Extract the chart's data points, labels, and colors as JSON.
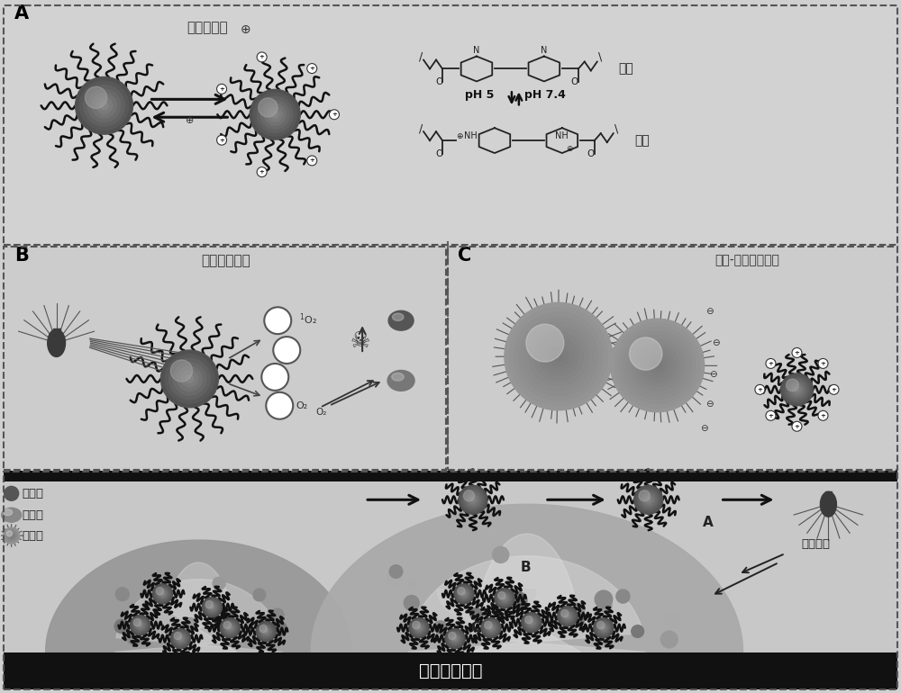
{
  "bg_color": "#d0d0d0",
  "panel_A_bg": "#d2d2d2",
  "panel_BC_bg": "#cccccc",
  "bottom_bg": "#c8c8c8",
  "label_A": "A",
  "label_B": "B",
  "label_C": "C",
  "text_surface_adapt": "表面自适应",
  "text_singlet_O2": "单线态氧产生",
  "text_particle_bacteria": "颗粒-细菌相互作用",
  "text_solid_surface": "固体基质表面",
  "text_dead_bacteria": "死细菌",
  "text_live_bacteria": "活细菌",
  "text_porphyrin": "原卟啉",
  "text_biofilm": "生物被膜",
  "text_hydrophobic": "疏水",
  "text_hydrophilic": "亲水",
  "text_pH_label": "pH 5",
  "text_pH_label2": "pH 7.4"
}
